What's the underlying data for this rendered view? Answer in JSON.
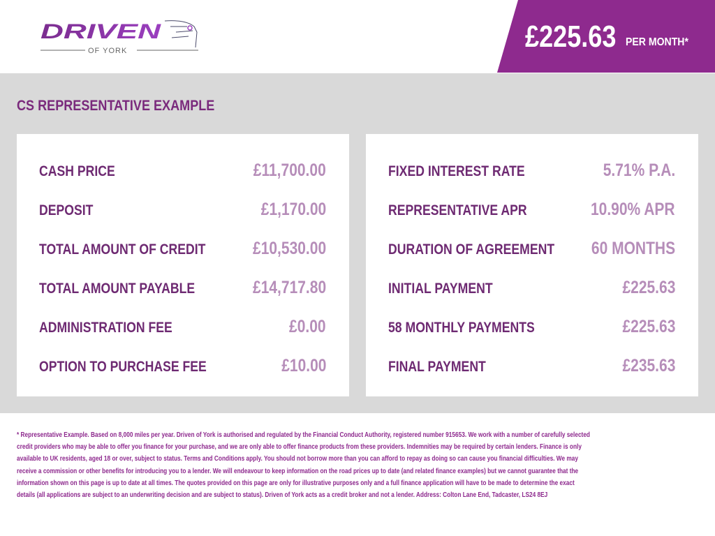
{
  "brand": {
    "name": "DRIVEN",
    "sub": "OF YORK"
  },
  "banner": {
    "price": "£225.63",
    "suffix": "PER MONTH*"
  },
  "section": {
    "title": "CS REPRESENTATIVE EXAMPLE"
  },
  "left_items": [
    {
      "label": "CASH PRICE",
      "value": "£11,700.00"
    },
    {
      "label": "DEPOSIT",
      "value": "£1,170.00"
    },
    {
      "label": "TOTAL AMOUNT OF CREDIT",
      "value": "£10,530.00"
    },
    {
      "label": "TOTAL AMOUNT PAYABLE",
      "value": "£14,717.80"
    },
    {
      "label": "ADMINISTRATION FEE",
      "value": "£0.00"
    },
    {
      "label": "OPTION TO PURCHASE FEE",
      "value": "£10.00"
    }
  ],
  "right_items": [
    {
      "label": "FIXED INTEREST RATE",
      "value": "5.71% P.A."
    },
    {
      "label": "REPRESENTATIVE APR",
      "value": "10.90% APR"
    },
    {
      "label": "DURATION OF AGREEMENT",
      "value": "60 MONTHS"
    },
    {
      "label": "INITIAL PAYMENT",
      "value": "£225.63"
    },
    {
      "label": "58 MONTHLY PAYMENTS",
      "value": "£225.63"
    },
    {
      "label": "FINAL PAYMENT",
      "value": "£235.63"
    }
  ],
  "disclaimer_lines": [
    "* Representative Example. Based on 8,000 miles per year. Driven of York is authorised and regulated by the Financial Conduct Authority, registered number 915653. We work with a number of carefully selected",
    "credit providers who may be able to offer you finance for your purchase, and we are only able to offer finance products from these providers. Indemnities may be required by certain lenders. Finance is only",
    "available to UK residents, aged 18 or over, subject to status. Terms and Conditions apply. You should not borrow more than you can afford to repay as doing so can cause you financial difficulties. We may",
    "receive a commission or other benefits for introducing you to a lender. We will endeavour to keep information on the road prices up to date (and related finance examples) but we cannot guarantee that the",
    "information shown on this page is up to date at all times. The quotes provided on this page are only for illustrative purposes only and a full finance application will have to be made to determine the exact",
    "details (all applications are subject to an underwriting decision and are subject to status). Driven of York acts as a credit broker and not a lender. Address: Colton Lane End, Tadcaster, LS24 8EJ"
  ],
  "colors": {
    "brand": "#8e2a8e",
    "label": "#6e2a72",
    "value": "#b68db9",
    "panel_bg": "#d9d9d9"
  }
}
